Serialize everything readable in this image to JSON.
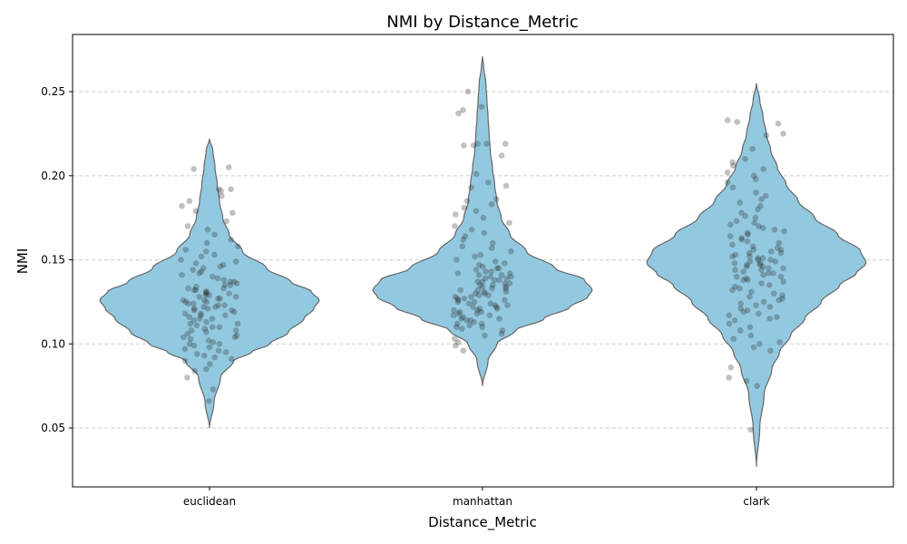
{
  "chart_data": {
    "type": "violin",
    "title": "NMI by Distance_Metric",
    "xlabel": "Distance_Metric",
    "ylabel": "NMI",
    "categories": [
      "euclidean",
      "manhattan",
      "clark"
    ],
    "ylim": [
      0.015,
      0.284
    ],
    "yticks": [
      0.05,
      0.1,
      0.15,
      0.2,
      0.25
    ],
    "ytick_labels": [
      "0.05",
      "0.10",
      "0.15",
      "0.20",
      "0.25"
    ],
    "grid": "horizontal dashed",
    "fill_color": "#93c9e0",
    "edge_color": "#666666",
    "point_color": "#222222",
    "violins": [
      {
        "category": "euclidean",
        "min": 0.05,
        "max": 0.222,
        "density_profile": [
          [
            0.05,
            0.0
          ],
          [
            0.065,
            0.04
          ],
          [
            0.08,
            0.1
          ],
          [
            0.09,
            0.22
          ],
          [
            0.095,
            0.38
          ],
          [
            0.1,
            0.55
          ],
          [
            0.107,
            0.72
          ],
          [
            0.115,
            0.86
          ],
          [
            0.121,
            0.95
          ],
          [
            0.126,
            1.0
          ],
          [
            0.131,
            0.93
          ],
          [
            0.137,
            0.74
          ],
          [
            0.145,
            0.52
          ],
          [
            0.155,
            0.3
          ],
          [
            0.165,
            0.18
          ],
          [
            0.175,
            0.12
          ],
          [
            0.185,
            0.09
          ],
          [
            0.195,
            0.07
          ],
          [
            0.205,
            0.05
          ],
          [
            0.215,
            0.03
          ],
          [
            0.222,
            0.0
          ]
        ]
      },
      {
        "category": "manhattan",
        "min": 0.075,
        "max": 0.271,
        "density_profile": [
          [
            0.075,
            0.0
          ],
          [
            0.09,
            0.05
          ],
          [
            0.1,
            0.13
          ],
          [
            0.108,
            0.3
          ],
          [
            0.115,
            0.56
          ],
          [
            0.122,
            0.8
          ],
          [
            0.128,
            0.96
          ],
          [
            0.132,
            1.0
          ],
          [
            0.138,
            0.93
          ],
          [
            0.145,
            0.66
          ],
          [
            0.155,
            0.4
          ],
          [
            0.165,
            0.25
          ],
          [
            0.175,
            0.17
          ],
          [
            0.185,
            0.13
          ],
          [
            0.195,
            0.11
          ],
          [
            0.205,
            0.09
          ],
          [
            0.215,
            0.07
          ],
          [
            0.225,
            0.06
          ],
          [
            0.235,
            0.05
          ],
          [
            0.245,
            0.04
          ],
          [
            0.255,
            0.03
          ],
          [
            0.265,
            0.01
          ],
          [
            0.271,
            0.0
          ]
        ]
      },
      {
        "category": "clark",
        "min": 0.027,
        "max": 0.255,
        "density_profile": [
          [
            0.027,
            0.0
          ],
          [
            0.05,
            0.03
          ],
          [
            0.07,
            0.07
          ],
          [
            0.085,
            0.14
          ],
          [
            0.095,
            0.21
          ],
          [
            0.105,
            0.31
          ],
          [
            0.115,
            0.44
          ],
          [
            0.125,
            0.59
          ],
          [
            0.135,
            0.76
          ],
          [
            0.142,
            0.91
          ],
          [
            0.148,
            1.0
          ],
          [
            0.155,
            0.95
          ],
          [
            0.165,
            0.74
          ],
          [
            0.175,
            0.53
          ],
          [
            0.185,
            0.38
          ],
          [
            0.195,
            0.27
          ],
          [
            0.205,
            0.19
          ],
          [
            0.215,
            0.13
          ],
          [
            0.225,
            0.09
          ],
          [
            0.235,
            0.06
          ],
          [
            0.245,
            0.03
          ],
          [
            0.255,
            0.0
          ]
        ]
      }
    ],
    "points": {
      "euclidean": [
        0.066,
        0.073,
        0.08,
        0.084,
        0.085,
        0.088,
        0.09,
        0.091,
        0.092,
        0.093,
        0.094,
        0.095,
        0.096,
        0.097,
        0.098,
        0.099,
        0.1,
        0.1,
        0.101,
        0.102,
        0.103,
        0.104,
        0.104,
        0.105,
        0.106,
        0.107,
        0.108,
        0.108,
        0.109,
        0.11,
        0.11,
        0.111,
        0.112,
        0.112,
        0.113,
        0.114,
        0.115,
        0.115,
        0.116,
        0.117,
        0.117,
        0.118,
        0.118,
        0.119,
        0.12,
        0.12,
        0.121,
        0.121,
        0.122,
        0.122,
        0.123,
        0.123,
        0.124,
        0.124,
        0.125,
        0.125,
        0.126,
        0.126,
        0.127,
        0.127,
        0.128,
        0.128,
        0.129,
        0.129,
        0.13,
        0.13,
        0.131,
        0.131,
        0.132,
        0.132,
        0.133,
        0.133,
        0.134,
        0.135,
        0.135,
        0.136,
        0.137,
        0.137,
        0.138,
        0.139,
        0.14,
        0.141,
        0.142,
        0.143,
        0.144,
        0.145,
        0.146,
        0.147,
        0.148,
        0.149,
        0.15,
        0.152,
        0.153,
        0.155,
        0.156,
        0.158,
        0.16,
        0.162,
        0.165,
        0.168,
        0.17,
        0.173,
        0.178,
        0.179,
        0.182,
        0.185,
        0.188,
        0.191,
        0.192,
        0.192,
        0.204,
        0.205
      ],
      "manhattan": [
        0.096,
        0.099,
        0.101,
        0.103,
        0.105,
        0.106,
        0.108,
        0.109,
        0.11,
        0.11,
        0.111,
        0.112,
        0.112,
        0.113,
        0.114,
        0.114,
        0.115,
        0.115,
        0.116,
        0.117,
        0.117,
        0.118,
        0.118,
        0.119,
        0.119,
        0.12,
        0.12,
        0.121,
        0.121,
        0.122,
        0.122,
        0.123,
        0.123,
        0.124,
        0.124,
        0.125,
        0.125,
        0.126,
        0.126,
        0.127,
        0.127,
        0.128,
        0.128,
        0.129,
        0.129,
        0.13,
        0.13,
        0.131,
        0.131,
        0.132,
        0.132,
        0.133,
        0.133,
        0.134,
        0.134,
        0.135,
        0.135,
        0.136,
        0.136,
        0.137,
        0.137,
        0.138,
        0.138,
        0.139,
        0.139,
        0.14,
        0.14,
        0.141,
        0.141,
        0.142,
        0.142,
        0.143,
        0.143,
        0.144,
        0.145,
        0.145,
        0.146,
        0.147,
        0.148,
        0.149,
        0.15,
        0.152,
        0.153,
        0.155,
        0.157,
        0.158,
        0.16,
        0.162,
        0.164,
        0.166,
        0.168,
        0.17,
        0.172,
        0.175,
        0.177,
        0.179,
        0.181,
        0.183,
        0.185,
        0.186,
        0.193,
        0.194,
        0.196,
        0.201,
        0.212,
        0.218,
        0.218,
        0.219,
        0.219,
        0.219,
        0.237,
        0.239,
        0.241,
        0.25
      ],
      "clark": [
        0.049,
        0.075,
        0.078,
        0.08,
        0.086,
        0.096,
        0.098,
        0.1,
        0.101,
        0.103,
        0.105,
        0.108,
        0.11,
        0.112,
        0.114,
        0.115,
        0.116,
        0.117,
        0.118,
        0.119,
        0.12,
        0.121,
        0.122,
        0.123,
        0.124,
        0.125,
        0.126,
        0.127,
        0.128,
        0.129,
        0.13,
        0.131,
        0.132,
        0.133,
        0.134,
        0.135,
        0.136,
        0.137,
        0.138,
        0.138,
        0.139,
        0.14,
        0.14,
        0.141,
        0.142,
        0.142,
        0.143,
        0.144,
        0.144,
        0.145,
        0.145,
        0.146,
        0.146,
        0.147,
        0.147,
        0.148,
        0.148,
        0.149,
        0.149,
        0.15,
        0.15,
        0.151,
        0.151,
        0.152,
        0.152,
        0.153,
        0.154,
        0.154,
        0.155,
        0.156,
        0.156,
        0.157,
        0.158,
        0.159,
        0.16,
        0.161,
        0.162,
        0.163,
        0.164,
        0.165,
        0.166,
        0.167,
        0.168,
        0.169,
        0.17,
        0.171,
        0.172,
        0.173,
        0.175,
        0.176,
        0.178,
        0.18,
        0.182,
        0.184,
        0.186,
        0.188,
        0.19,
        0.193,
        0.196,
        0.198,
        0.2,
        0.202,
        0.204,
        0.206,
        0.208,
        0.21,
        0.216,
        0.224,
        0.225,
        0.231,
        0.232,
        0.233
      ]
    }
  }
}
